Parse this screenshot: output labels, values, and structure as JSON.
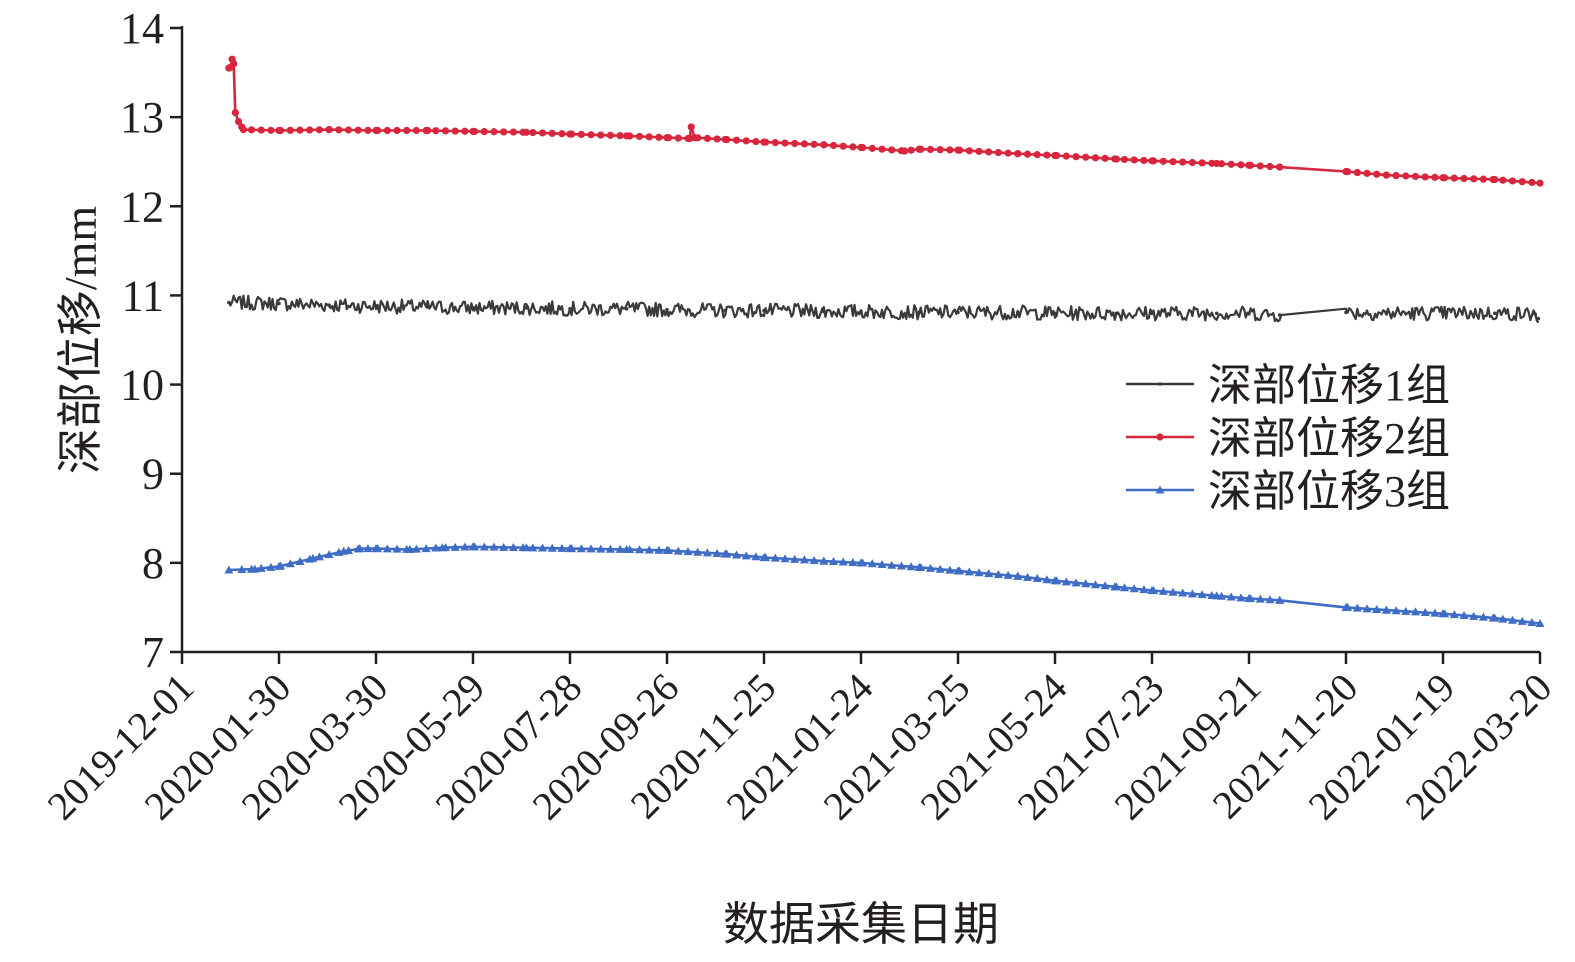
{
  "chart_data": {
    "type": "line",
    "xlabel": "数据采集日期",
    "ylabel": "深部位移/mm",
    "ylim": [
      7,
      14
    ],
    "yticks": [
      7,
      8,
      9,
      10,
      11,
      12,
      13,
      14
    ],
    "xlim": [
      "2019-12-01",
      "2022-03-20"
    ],
    "xticks": [
      "2019-12-01",
      "2020-01-30",
      "2020-03-30",
      "2020-05-29",
      "2020-07-28",
      "2020-09-26",
      "2020-11-25",
      "2021-01-24",
      "2021-03-25",
      "2021-05-24",
      "2021-07-23",
      "2021-09-21",
      "2021-11-20",
      "2022-01-19",
      "2022-03-20"
    ],
    "grid": false,
    "legend_position": "right",
    "series": [
      {
        "name": "深部位移1组",
        "color": "#3a3a3c",
        "marker": "dot-small",
        "noisy": true,
        "x": [
          "2019-12-30",
          "2020-01-30",
          "2020-03-01",
          "2020-03-30",
          "2020-05-01",
          "2020-05-29",
          "2020-07-01",
          "2020-07-28",
          "2020-09-01",
          "2020-09-26",
          "2020-11-01",
          "2020-11-25",
          "2021-01-01",
          "2021-01-24",
          "2021-03-01",
          "2021-03-25",
          "2021-05-01",
          "2021-05-24",
          "2021-07-01",
          "2021-07-23",
          "2021-09-01",
          "2021-09-21",
          "2021-10-10",
          "2021-11-20",
          "2021-12-15",
          "2022-01-19",
          "2022-02-20",
          "2022-03-17",
          "2022-03-19"
        ],
        "y": [
          10.92,
          10.91,
          10.89,
          10.88,
          10.87,
          10.86,
          10.86,
          10.85,
          10.85,
          10.84,
          10.83,
          10.83,
          10.82,
          10.82,
          10.81,
          10.81,
          10.81,
          10.8,
          10.8,
          10.8,
          10.8,
          10.8,
          10.78,
          10.81,
          10.8,
          10.8,
          10.8,
          10.79,
          10.74
        ]
      },
      {
        "name": "深部位移2组",
        "color": "#d7263d",
        "marker": "circle",
        "noisy": false,
        "x": [
          "2019-12-30",
          "2019-12-31",
          "2020-01-01",
          "2020-01-02",
          "2020-01-03",
          "2020-01-05",
          "2020-01-08",
          "2020-01-30",
          "2020-03-01",
          "2020-03-30",
          "2020-05-01",
          "2020-05-29",
          "2020-07-01",
          "2020-07-28",
          "2020-09-01",
          "2020-09-26",
          "2020-10-10",
          "2020-10-11",
          "2020-10-13",
          "2020-11-01",
          "2020-11-25",
          "2021-01-01",
          "2021-01-24",
          "2021-02-20",
          "2021-03-01",
          "2021-03-25",
          "2021-05-01",
          "2021-05-24",
          "2021-07-01",
          "2021-07-23",
          "2021-09-01",
          "2021-09-21",
          "2021-10-10",
          "2021-11-20",
          "2021-12-15",
          "2022-01-19",
          "2022-02-20",
          "2022-03-20"
        ],
        "y": [
          13.55,
          13.56,
          13.65,
          13.6,
          13.05,
          12.95,
          12.86,
          12.85,
          12.86,
          12.85,
          12.85,
          12.84,
          12.83,
          12.81,
          12.79,
          12.77,
          12.76,
          12.89,
          12.77,
          12.75,
          12.72,
          12.69,
          12.66,
          12.62,
          12.64,
          12.63,
          12.59,
          12.57,
          12.53,
          12.51,
          12.48,
          12.46,
          12.44,
          12.39,
          12.35,
          12.32,
          12.3,
          12.26
        ]
      },
      {
        "name": "深部位移3组",
        "color": "#3f6cc4",
        "marker": "triangle",
        "noisy": false,
        "x": [
          "2019-12-30",
          "2020-01-15",
          "2020-01-30",
          "2020-02-20",
          "2020-03-10",
          "2020-03-20",
          "2020-03-30",
          "2020-04-20",
          "2020-05-10",
          "2020-05-29",
          "2020-07-01",
          "2020-07-28",
          "2020-09-01",
          "2020-09-26",
          "2020-11-01",
          "2020-11-25",
          "2021-01-01",
          "2021-01-24",
          "2021-03-01",
          "2021-03-25",
          "2021-05-01",
          "2021-05-24",
          "2021-07-01",
          "2021-07-23",
          "2021-09-01",
          "2021-09-21",
          "2021-10-10",
          "2021-11-20",
          "2021-12-15",
          "2022-01-19",
          "2022-02-20",
          "2022-03-20"
        ],
        "y": [
          7.92,
          7.93,
          7.96,
          8.05,
          8.13,
          8.16,
          8.16,
          8.15,
          8.17,
          8.18,
          8.17,
          8.16,
          8.15,
          8.14,
          8.1,
          8.06,
          8.02,
          8.0,
          7.95,
          7.91,
          7.85,
          7.8,
          7.73,
          7.69,
          7.63,
          7.6,
          7.58,
          7.5,
          7.47,
          7.43,
          7.38,
          7.32
        ]
      }
    ]
  }
}
